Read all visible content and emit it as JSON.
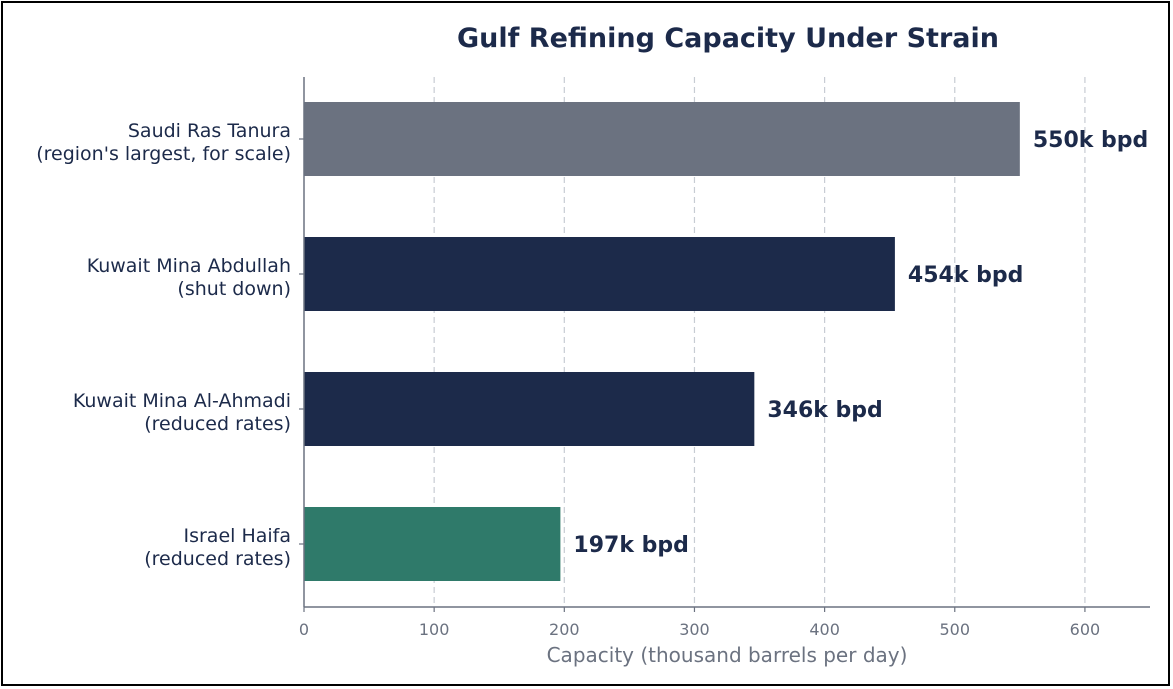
{
  "chart_data": {
    "type": "bar",
    "orientation": "horizontal",
    "title": "Gulf Refining Capacity Under Strain",
    "xlabel": "Capacity (thousand barrels per day)",
    "ylabel": "",
    "xlim": [
      0,
      650
    ],
    "xticks": [
      0,
      100,
      200,
      300,
      400,
      500,
      600
    ],
    "grid": "x, dashed",
    "categories": [
      [
        "Saudi Ras Tanura",
        "(region's largest, for scale)"
      ],
      [
        "Kuwait Mina Abdullah",
        "(shut down)"
      ],
      [
        "Kuwait Mina Al-Ahmadi",
        "(reduced rates)"
      ],
      [
        "Israel Haifa",
        "(reduced rates)"
      ]
    ],
    "values": [
      550,
      454,
      346,
      197
    ],
    "value_labels": [
      "550k bpd",
      "454k bpd",
      "346k bpd",
      "197k bpd"
    ],
    "bar_colors": [
      "#6b7280",
      "#1c2a4a",
      "#1c2a4a",
      "#2f7a6a"
    ]
  },
  "colors": {
    "text": "#1c2a4a",
    "muted": "#6b7280",
    "axis": "#6b7280",
    "grid": "#c7ccd3"
  }
}
